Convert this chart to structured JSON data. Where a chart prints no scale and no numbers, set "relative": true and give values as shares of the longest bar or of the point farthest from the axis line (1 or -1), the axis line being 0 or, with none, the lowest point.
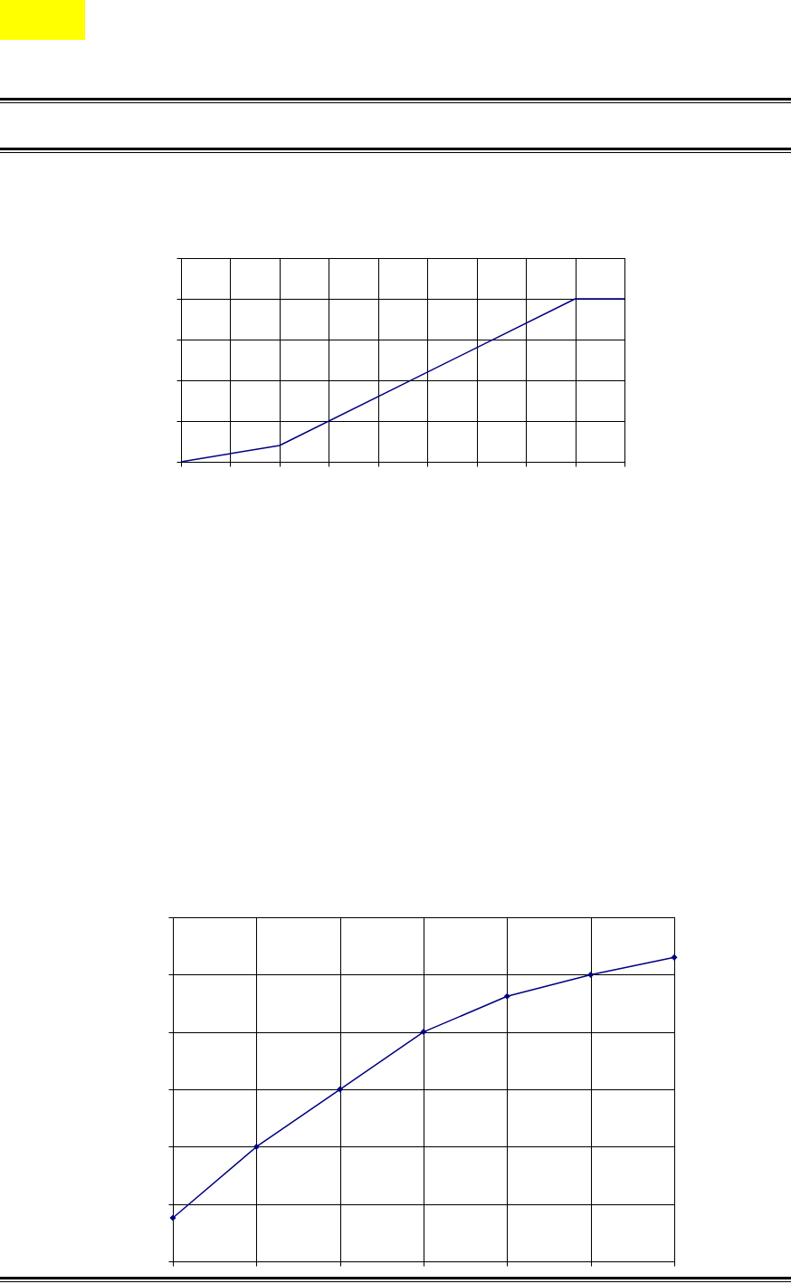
{
  "chart_data": [
    {
      "type": "line",
      "relative": true,
      "categories": [
        null,
        null,
        null,
        null,
        null,
        null,
        null,
        null,
        null,
        null
      ],
      "grid": true,
      "marker": "none",
      "series": [
        {
          "color": "#000080",
          "values": [
            0,
            null,
            0.1,
            null,
            null,
            null,
            null,
            null,
            1,
            1
          ]
        }
      ]
    },
    {
      "type": "line",
      "relative": true,
      "categories": [
        null,
        null,
        null,
        null,
        null,
        null,
        null
      ],
      "grid": true,
      "marker": "diamond",
      "series": [
        {
          "color": "#000080",
          "values": [
            0.143,
            0.377,
            0.566,
            0.755,
            0.872,
            0.943,
            1
          ]
        }
      ]
    }
  ]
}
